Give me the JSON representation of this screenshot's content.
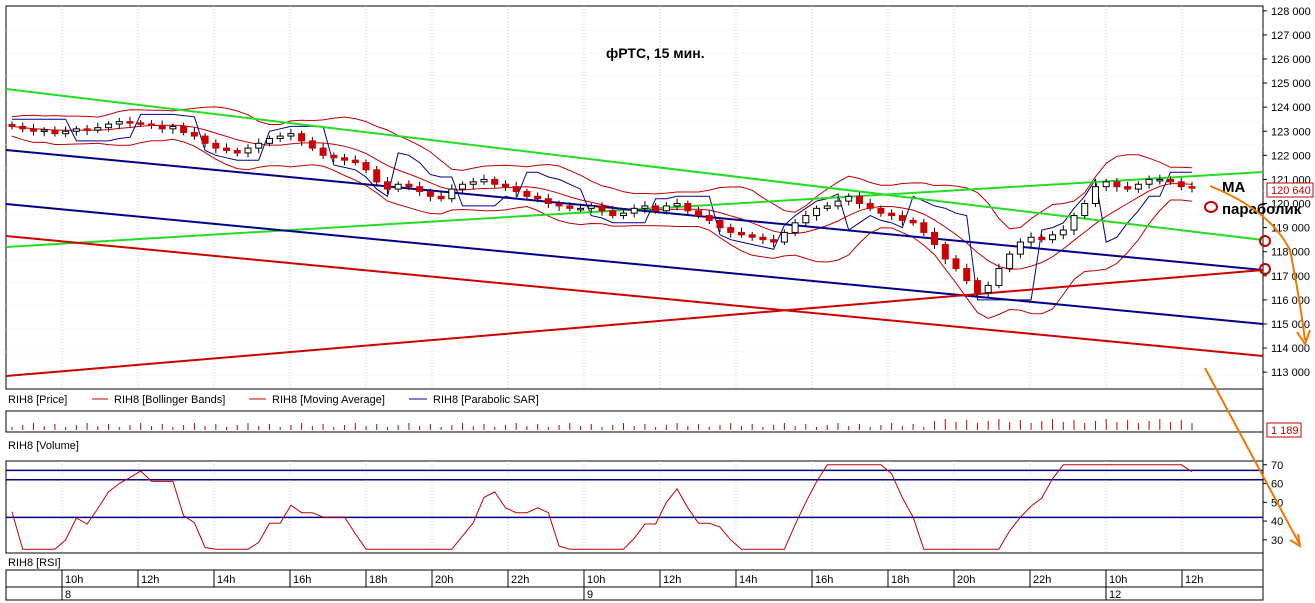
{
  "chart_data": {
    "type": "candlestick",
    "title": "фРТС, 15 мин.",
    "instrument": "RIH8",
    "last_price": "120 640",
    "last_volume": "1 189",
    "price_axis": {
      "ylim": [
        112300,
        128200
      ],
      "ticks": [
        113000,
        114000,
        115000,
        116000,
        117000,
        118000,
        119000,
        120000,
        121000,
        122000,
        123000,
        124000,
        125000,
        126000,
        127000,
        128000
      ],
      "tick_labels": [
        "113 000",
        "114 000",
        "115 000",
        "116 000",
        "117 000",
        "118 000",
        "119 000",
        "120 000",
        "121 000",
        "122 000",
        "123 000",
        "124 000",
        "125 000",
        "126 000",
        "127 000",
        "128 000"
      ]
    },
    "rsi_axis": {
      "ylim": [
        23,
        72
      ],
      "ticks": [
        30,
        40,
        50,
        60,
        70
      ],
      "tick_labels": [
        "30",
        "40",
        "50",
        "60",
        "70"
      ],
      "levels": [
        42,
        62,
        67
      ]
    },
    "time_axis": {
      "hour_labels": [
        "10h",
        "12h",
        "14h",
        "16h",
        "18h",
        "20h",
        "22h",
        "10h",
        "12h",
        "14h",
        "16h",
        "18h",
        "20h",
        "22h",
        "10h",
        "12h"
      ],
      "day_labels": [
        "8",
        "9",
        "12"
      ]
    },
    "legend": [
      {
        "name": "RIH8 [Price]",
        "color": "#000000"
      },
      {
        "name": "RIH8 [Bollinger Bands]",
        "color": "#c00000"
      },
      {
        "name": "RIH8 [Moving Average]",
        "color": "#c00000"
      },
      {
        "name": "RIH8 [Parabolic SAR]",
        "color": "#00008b"
      }
    ],
    "panels": {
      "volume_label": "RIH8 [Volume]",
      "rsi_label": "RIH8 [RSI]"
    },
    "close_series": [
      123200,
      123100,
      123000,
      123050,
      122900,
      123000,
      123100,
      123050,
      123150,
      123300,
      123400,
      123350,
      123300,
      123250,
      123100,
      123200,
      122950,
      122800,
      122500,
      122300,
      122200,
      122100,
      122300,
      122500,
      122700,
      122800,
      122900,
      122600,
      122300,
      122000,
      121900,
      121800,
      121700,
      121400,
      120900,
      120600,
      120800,
      120700,
      120500,
      120300,
      120200,
      120600,
      120800,
      120900,
      121000,
      120800,
      120700,
      120500,
      120300,
      120200,
      120000,
      119900,
      119800,
      119800,
      119900,
      119700,
      119500,
      119600,
      119800,
      119900,
      119700,
      119900,
      120000,
      119700,
      119500,
      119300,
      119000,
      118800,
      118700,
      118600,
      118500,
      118400,
      118800,
      119200,
      119500,
      119800,
      119900,
      120100,
      120300,
      120000,
      119800,
      119600,
      119500,
      119300,
      119200,
      118800,
      118300,
      117700,
      117300,
      116800,
      116300,
      116600,
      117300,
      117900,
      118400,
      118600,
      118500,
      118700,
      118900,
      119500,
      120000,
      120700,
      120900,
      120700,
      120600,
      120800,
      121000,
      121000,
      120900,
      120700,
      120640
    ],
    "annotations": [
      {
        "text": "MA"
      },
      {
        "text": "параболик"
      }
    ],
    "colors": {
      "bull": "#ffffff",
      "bear": "#cc0000",
      "green_channel": "#22dd22",
      "blue_channel": "#00008b",
      "red_channel": "#cc0000",
      "arrow": "#ee7700"
    }
  }
}
